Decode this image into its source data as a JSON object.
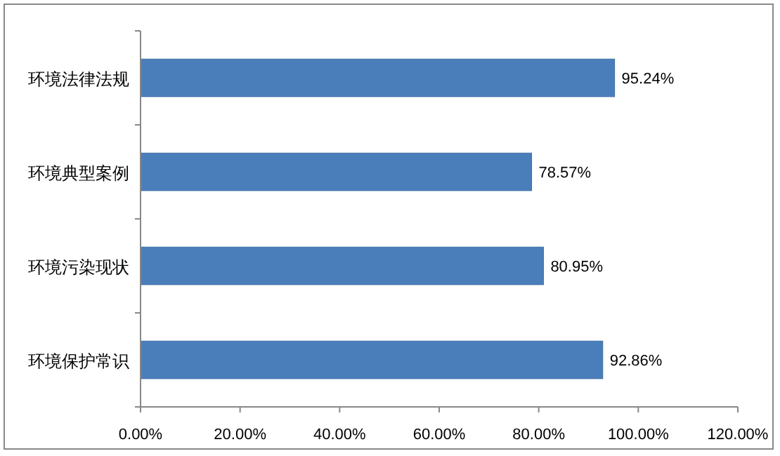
{
  "chart_data": {
    "type": "bar",
    "orientation": "horizontal",
    "categories": [
      "环境法律法规",
      "环境典型案例",
      "环境污染现状",
      "环境保护常识"
    ],
    "values": [
      95.24,
      78.57,
      80.95,
      92.86
    ],
    "value_labels": [
      "95.24%",
      "78.57%",
      "80.95%",
      "92.86%"
    ],
    "color": "#4a7ebb",
    "xlim": [
      0,
      120
    ],
    "xticks": [
      {
        "value": 0,
        "label": "0.00%"
      },
      {
        "value": 20,
        "label": "20.00%"
      },
      {
        "value": 40,
        "label": "40.00%"
      },
      {
        "value": 60,
        "label": "60.00%"
      },
      {
        "value": 80,
        "label": "80.00%"
      },
      {
        "value": 100,
        "label": "100.00%"
      },
      {
        "value": 120,
        "label": "120.00%"
      }
    ],
    "grid": false
  }
}
